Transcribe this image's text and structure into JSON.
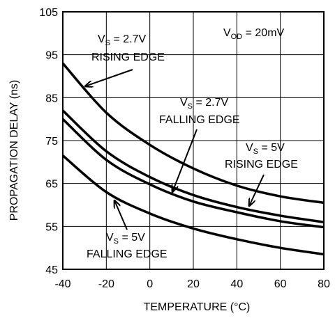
{
  "chart_data": {
    "type": "line",
    "title": "",
    "xlabel": "TEMPERATURE (°C)",
    "ylabel": "PROPAGATION DELAY (ns)",
    "xlim": [
      -40,
      80
    ],
    "ylim": [
      45,
      105
    ],
    "x_ticks": [
      -40,
      -20,
      0,
      20,
      40,
      60,
      80
    ],
    "y_ticks": [
      45,
      55,
      65,
      75,
      85,
      95,
      105
    ],
    "grid": true,
    "x": [
      -40,
      -20,
      0,
      20,
      40,
      60,
      80
    ],
    "series": [
      {
        "name": "VS = 2.7V RISING EDGE",
        "values": [
          93,
          81.5,
          74,
          68.5,
          64.5,
          62,
          60.5
        ]
      },
      {
        "name": "VS = 2.7V FALLING EDGE",
        "values": [
          82,
          72.5,
          66.5,
          62.3,
          59.5,
          57.5,
          56
        ]
      },
      {
        "name": "VS = 5V RISING EDGE",
        "values": [
          80,
          70.5,
          64.8,
          60.8,
          58.3,
          56.2,
          54.8
        ]
      },
      {
        "name": "VS = 5V FALLING EDGE",
        "values": [
          71.5,
          63,
          58,
          54.5,
          52,
          50,
          48.5
        ]
      }
    ],
    "annotations": {
      "vod": {
        "main": "V",
        "sub": "OD",
        "rest": " = 20mV"
      },
      "rise27": {
        "main": "V",
        "sub": "S",
        "rest": " = 2.7V",
        "line2": "RISING EDGE"
      },
      "fall27": {
        "main": "V",
        "sub": "S",
        "rest": " = 2.7V",
        "line2": "FALLING EDGE"
      },
      "rise5": {
        "main": "V",
        "sub": "S",
        "rest": " = 5V",
        "line2": "RISING EDGE"
      },
      "fall5": {
        "main": "V",
        "sub": "S",
        "rest": " = 5V",
        "line2": "FALLING EDGE"
      }
    }
  }
}
